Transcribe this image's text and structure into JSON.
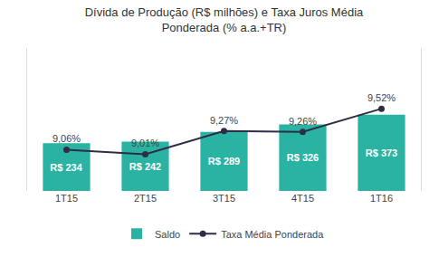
{
  "chart_data": {
    "type": "bar",
    "title": "Dívida de Produção (R$ milhões) e Taxa Juros Média\nPonderada (% a.a.+TR)",
    "categories": [
      "1T15",
      "2T15",
      "3T15",
      "4T15",
      "1T16"
    ],
    "series": [
      {
        "name": "Saldo",
        "type": "bar",
        "color": "#2ab3a3",
        "values": [
          234,
          242,
          289,
          326,
          373
        ],
        "value_labels": [
          "R$ 234",
          "R$ 242",
          "R$ 289",
          "R$ 326",
          "R$ 373"
        ]
      },
      {
        "name": "Taxa Média Ponderada",
        "type": "line",
        "axis": "y2",
        "color": "#2d2d44",
        "marker": "circle",
        "values": [
          9.06,
          9.01,
          9.27,
          9.26,
          9.52
        ],
        "value_labels": [
          "9,06%",
          "9,01%",
          "9,27%",
          "9,26%",
          "9,52%"
        ]
      }
    ],
    "ylim": [
      0,
      700
    ],
    "y2lim": [
      8.6,
      10.2
    ],
    "tick_labels": "x",
    "data_labels": true,
    "grid": false,
    "legend": "bottom"
  }
}
